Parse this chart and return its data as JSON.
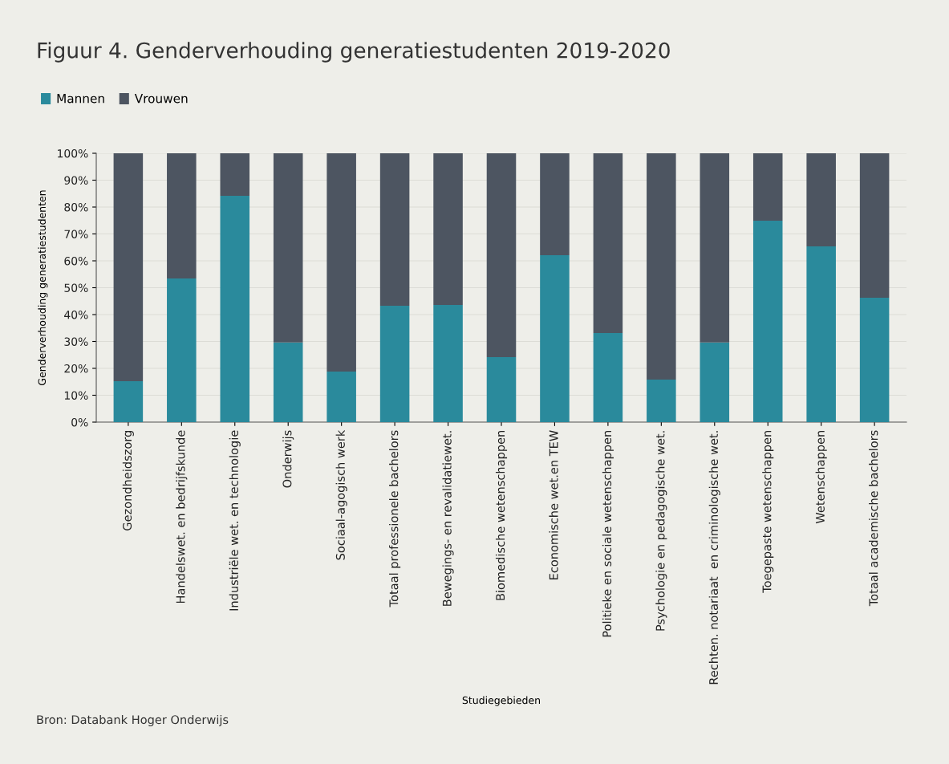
{
  "chart_data": {
    "type": "bar",
    "stacked": true,
    "title": "Figuur 4. Genderverhouding generatiestudenten 2019-2020",
    "xlabel": "Studiegebieden",
    "ylabel": "Genderverhouding generatiestudenten",
    "categories": [
      "Gezondheidszorg",
      "Handelswet. en bedrijfskunde",
      "Industriële wet. en technologie",
      "Onderwijs",
      "Sociaal-agogisch werk",
      "Totaal professionele bachelors",
      "Bewegings- en revalidatiewet.",
      "Biomedische wetenschappen",
      "Economische wet.en TEW",
      "Politieke en sociale wetenschappen",
      "Psychologie en pedagogische wet.",
      "Rechten. notariaat  en criminologische wet.",
      "Toegepaste wetenschappen",
      "Wetenschappen",
      "Totaal academische bachelors"
    ],
    "series": [
      {
        "name": "Mannen",
        "color": "#2a8a9c",
        "values": [
          15.2,
          53.4,
          84.2,
          29.6,
          18.8,
          43.3,
          43.6,
          24.2,
          62.1,
          33.1,
          15.8,
          29.6,
          74.9,
          65.4,
          46.3
        ]
      },
      {
        "name": "Vrouwen",
        "color": "#4d5561",
        "values": [
          84.8,
          46.6,
          15.8,
          70.4,
          81.2,
          56.7,
          56.4,
          75.8,
          37.9,
          66.9,
          84.2,
          70.4,
          25.1,
          34.6,
          53.7
        ]
      }
    ],
    "ylim": [
      0,
      100
    ],
    "yticks": [
      {
        "value": 0,
        "label": "0%"
      },
      {
        "value": 10,
        "label": "10%"
      },
      {
        "value": 20,
        "label": "20%"
      },
      {
        "value": 30,
        "label": "30%"
      },
      {
        "value": 40,
        "label": "40%"
      },
      {
        "value": 50,
        "label": "50%"
      },
      {
        "value": 60,
        "label": "60%"
      },
      {
        "value": 70,
        "label": "70%"
      },
      {
        "value": 80,
        "label": "80%"
      },
      {
        "value": 90,
        "label": "90%"
      },
      {
        "value": 100,
        "label": "100%"
      }
    ],
    "grid": "y",
    "legend": "top left",
    "annotations": [
      "Bron: Databank Hoger Onderwijs"
    ]
  }
}
